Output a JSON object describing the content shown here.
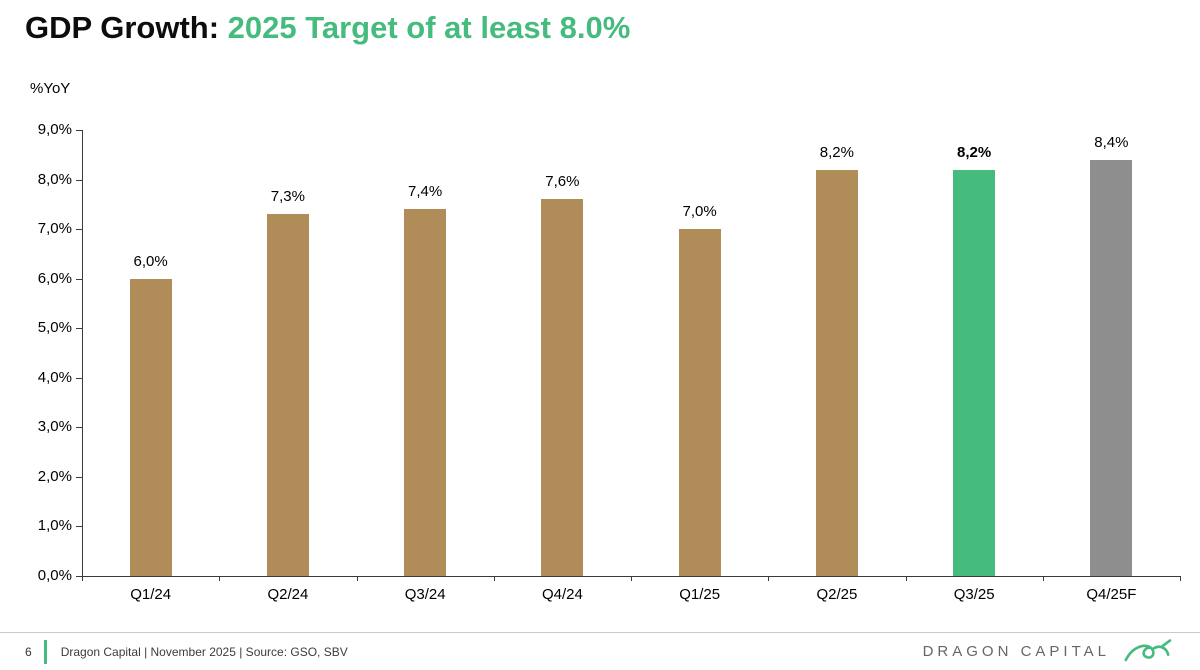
{
  "title": {
    "prefix": "GDP Growth: ",
    "highlight": "2025 Target of at least 8.0%"
  },
  "colors": {
    "accent_green": "#45BB7E",
    "bar_tan": "#B08D58",
    "bar_gray": "#8E8E8E",
    "axis": "#3C3C3C"
  },
  "chart_data": {
    "type": "bar",
    "title": "GDP Growth: 2025 Target of at least 8.0%",
    "ylabel": "%YoY",
    "xlabel": "",
    "ylim": [
      0,
      9
    ],
    "ytick_step": 1,
    "ytick_labels": [
      "0,0%",
      "1,0%",
      "2,0%",
      "3,0%",
      "4,0%",
      "5,0%",
      "6,0%",
      "7,0%",
      "8,0%",
      "9,0%"
    ],
    "categories": [
      "Q1/24",
      "Q2/24",
      "Q3/24",
      "Q4/24",
      "Q1/25",
      "Q2/25",
      "Q3/25",
      "Q4/25F"
    ],
    "values": [
      6.0,
      7.3,
      7.4,
      7.6,
      7.0,
      8.2,
      8.2,
      8.4
    ],
    "value_labels": [
      "6,0%",
      "7,3%",
      "7,4%",
      "7,6%",
      "7,0%",
      "8,2%",
      "8,2%",
      "8,4%"
    ],
    "bar_colors": [
      "#B08D58",
      "#B08D58",
      "#B08D58",
      "#B08D58",
      "#B08D58",
      "#B08D58",
      "#45BB7E",
      "#8E8E8E"
    ],
    "label_bold": [
      false,
      false,
      false,
      false,
      false,
      false,
      true,
      false
    ],
    "grid": false,
    "legend": "none"
  },
  "footer": {
    "page_number": "6",
    "caption": "Dragon Capital | November 2025 | Source: GSO, SBV",
    "brand": "DRAGON CAPITAL"
  }
}
